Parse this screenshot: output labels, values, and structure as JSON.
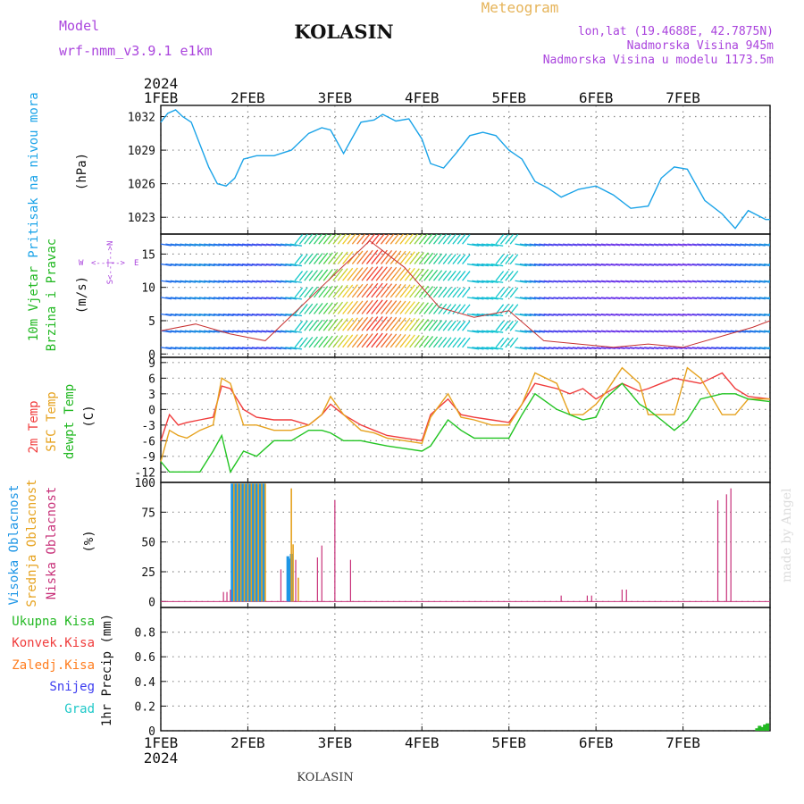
{
  "header": {
    "model_label": "Model",
    "model_name": "wrf-nmm_v3.9.1 e1km",
    "station": "KOLASIN",
    "meteogram": "Meteogram",
    "lonlat": "lon,lat (19.4688E, 42.7875N)",
    "altitude": "Nadmorska Visina 945m",
    "model_altitude": "Nadmorska Visina u modelu 1173.5m",
    "credit": "made by Angel",
    "footer_station": "KOLASIN"
  },
  "x_axis": {
    "year": "2024",
    "days": [
      "1FEB",
      "2FEB",
      "3FEB",
      "4FEB",
      "5FEB",
      "6FEB",
      "7FEB"
    ]
  },
  "colors": {
    "pressure": "#1aa3e8",
    "t2m": "#f03c3c",
    "sfc": "#e6a21e",
    "dewpt": "#22c422",
    "high_cloud": "#1e96e6",
    "mid_cloud": "#e6a21e",
    "low_cloud": "#c8327a",
    "total_precip": "#22b822",
    "convective": "#f03c3c",
    "freezing": "#ff7d1e",
    "snow": "#3c3cf0",
    "hail": "#1ec8c8",
    "wind_label": "#aa44dd"
  },
  "labels": {
    "p1": [
      "Pritisak na nivou mora",
      "(hPa)"
    ],
    "p2": [
      "10m Vjetar",
      "Brzina i Pravac",
      "(m/s)"
    ],
    "p3": [
      "2m Temp",
      "SFC Temp",
      "dewpt Temp",
      "(C)"
    ],
    "p4": [
      "Visoka Oblacnost",
      "Srednja Oblacnost",
      "Niska Oblacnost",
      "(%)"
    ],
    "p5": [
      "Ukupna Kisa",
      "Konvek.Kisa",
      "Zaledj.Kisa",
      "Snijeg",
      "Grad",
      "1hr Precip (mm)"
    ],
    "compass": {
      "n": "N",
      "s": "S",
      "w": "W",
      "e": "E",
      "arrows": "<--|-->"
    }
  },
  "chart_data": [
    {
      "type": "line",
      "title": "",
      "ylabel": "Pritisak na nivou mora (hPa)",
      "ylim": [
        1021.5,
        1033
      ],
      "yticks": [
        1023,
        1026,
        1029,
        1032
      ],
      "x": [
        0,
        0.08,
        0.17,
        0.25,
        0.35,
        0.45,
        0.55,
        0.65,
        0.75,
        0.85,
        0.95,
        1.1,
        1.3,
        1.5,
        1.7,
        1.85,
        1.95,
        2.1,
        2.3,
        2.45,
        2.55,
        2.7,
        2.85,
        3.0,
        3.1,
        3.25,
        3.4,
        3.55,
        3.7,
        3.85,
        4.0,
        4.15,
        4.3,
        4.45,
        4.6,
        4.8,
        5.0,
        5.2,
        5.4,
        5.6,
        5.75,
        5.9,
        6.05,
        6.25,
        6.45,
        6.6,
        6.75,
        6.95,
        7.0
      ],
      "series": [
        {
          "name": "",
          "values": [
            1031.5,
            1032.3,
            1032.6,
            1032.0,
            1031.5,
            1029.5,
            1027.5,
            1026.0,
            1025.8,
            1026.5,
            1028.2,
            1028.5,
            1028.5,
            1029.0,
            1030.5,
            1031.0,
            1030.8,
            1028.7,
            1031.5,
            1031.7,
            1032.2,
            1031.6,
            1031.8,
            1030.0,
            1027.8,
            1027.4,
            1028.8,
            1030.3,
            1030.6,
            1030.3,
            1029.0,
            1028.2,
            1026.2,
            1025.6,
            1024.8,
            1025.5,
            1025.8,
            1025.0,
            1023.8,
            1024.0,
            1026.5,
            1027.5,
            1027.3,
            1024.5,
            1023.3,
            1022.0,
            1023.6,
            1022.8,
            1022.8
          ]
        }
      ]
    },
    {
      "type": "line",
      "title": "",
      "ylabel": "10m Vjetar Brzina i Pravac (m/s)",
      "ylim": [
        -0.5,
        18
      ],
      "yticks": [
        0,
        5,
        10,
        15
      ],
      "x": [
        0,
        0.4,
        0.8,
        1.2,
        1.6,
        2.0,
        2.4,
        2.8,
        3.2,
        3.6,
        4.0,
        4.4,
        4.8,
        5.2,
        5.6,
        6.0,
        6.4,
        6.8,
        7.0
      ],
      "series": [
        {
          "name": "",
          "values": [
            3.5,
            4.5,
            3.0,
            2.0,
            7.0,
            12.0,
            17.0,
            13.0,
            7.0,
            5.5,
            6.5,
            2.0,
            1.5,
            1.0,
            1.5,
            1.0,
            2.5,
            4.0,
            5.0
          ]
        }
      ]
    },
    {
      "type": "line",
      "title": "",
      "ylabel": "2m Temp, SFC Temp, dewpt Temp (C)",
      "ylim": [
        -14,
        10
      ],
      "yticks": [
        -12,
        -9,
        -6,
        -3,
        0,
        3,
        6,
        9
      ],
      "x": [
        0,
        0.1,
        0.2,
        0.3,
        0.45,
        0.6,
        0.7,
        0.8,
        0.95,
        1.1,
        1.3,
        1.5,
        1.7,
        1.85,
        1.95,
        2.1,
        2.3,
        2.45,
        2.6,
        2.8,
        3.0,
        3.1,
        3.3,
        3.45,
        3.6,
        3.8,
        4.0,
        4.15,
        4.3,
        4.55,
        4.7,
        4.85,
        5.0,
        5.1,
        5.3,
        5.5,
        5.6,
        5.75,
        5.9,
        6.05,
        6.2,
        6.45,
        6.6,
        6.75,
        7.0
      ],
      "series": [
        {
          "name": "2m Temp",
          "values": [
            -6,
            -1,
            -3,
            -2.5,
            -2,
            -1.5,
            4.5,
            4,
            0,
            -1.5,
            -2,
            -2,
            -3,
            -1,
            1,
            -1,
            -3,
            -4,
            -5,
            -5.5,
            -6,
            -1,
            2,
            -1,
            -1.5,
            -2,
            -2.5,
            1,
            5,
            4,
            3,
            4,
            2,
            3,
            5,
            3.5,
            4,
            5,
            6,
            5.5,
            5,
            7,
            4,
            2.5,
            2
          ]
        },
        {
          "name": "SFC Temp",
          "values": [
            -10,
            -4,
            -5,
            -5.5,
            -4,
            -3,
            6,
            5,
            -3,
            -3,
            -4,
            -4,
            -3,
            -1,
            2.5,
            -1,
            -4,
            -4.5,
            -5.5,
            -6,
            -6.5,
            -1.5,
            3,
            -1.5,
            -2,
            -3,
            -3,
            1,
            7,
            5,
            -1,
            -1,
            1,
            3,
            8,
            5,
            -1,
            -1,
            -1,
            8,
            6,
            -1,
            -1,
            2,
            2
          ]
        },
        {
          "name": "dewpt Temp",
          "values": [
            -10,
            -12,
            -12,
            -12,
            -12,
            -8,
            -5,
            -12,
            -8,
            -9,
            -6,
            -6,
            -4,
            -4,
            -4.5,
            -6,
            -6,
            -6.5,
            -7,
            -7.5,
            -8,
            -7,
            -2,
            -4,
            -5.5,
            -5.5,
            -5.5,
            -1,
            3,
            0,
            -1,
            -2,
            -1.5,
            2,
            5,
            1,
            0,
            -2,
            -4,
            -2,
            2,
            3,
            3,
            2,
            1.5
          ]
        }
      ]
    },
    {
      "type": "bar",
      "title": "",
      "ylabel": "Oblacnost (%)",
      "ylim": [
        -5,
        100
      ],
      "yticks": [
        0,
        25,
        50,
        75,
        100
      ],
      "series": [
        {
          "name": "Visoka Oblacnost",
          "x": [
            0.82,
            0.86,
            0.9,
            0.94,
            0.98,
            1.02,
            1.06,
            1.1,
            1.14,
            1.18,
            1.46,
            1.48,
            1.5
          ],
          "values": [
            99,
            99,
            99,
            99,
            99,
            99,
            99,
            99,
            99,
            99,
            38,
            36,
            40
          ]
        },
        {
          "name": "Srednja Oblacnost",
          "x": [
            0.84,
            0.88,
            0.92,
            0.96,
            1.0,
            1.04,
            1.08,
            1.12,
            1.16,
            1.2,
            1.5,
            1.52,
            1.58
          ],
          "values": [
            99,
            99,
            99,
            99,
            99,
            99,
            99,
            99,
            99,
            99,
            95,
            48,
            20
          ]
        },
        {
          "name": "Niska Oblacnost",
          "x": [
            0.72,
            0.76,
            0.8,
            1.38,
            1.55,
            1.8,
            1.85,
            2.0,
            2.18,
            4.6,
            4.9,
            4.95,
            5.3,
            5.35,
            6.4,
            6.5,
            6.55
          ],
          "values": [
            8,
            8,
            10,
            27,
            35,
            37,
            47,
            85,
            35,
            5,
            5,
            5,
            10,
            10,
            85,
            90,
            95
          ]
        }
      ]
    },
    {
      "type": "bar",
      "title": "",
      "ylabel": "1hr Precip (mm)",
      "ylim": [
        0,
        1
      ],
      "yticks": [
        0,
        0.2,
        0.4,
        0.6,
        0.8
      ],
      "series": [
        {
          "name": "Ukupna Kisa",
          "x": [
            6.85,
            6.88,
            6.91,
            6.94,
            6.97
          ],
          "values": [
            0.02,
            0.04,
            0.03,
            0.05,
            0.06
          ]
        }
      ]
    }
  ]
}
